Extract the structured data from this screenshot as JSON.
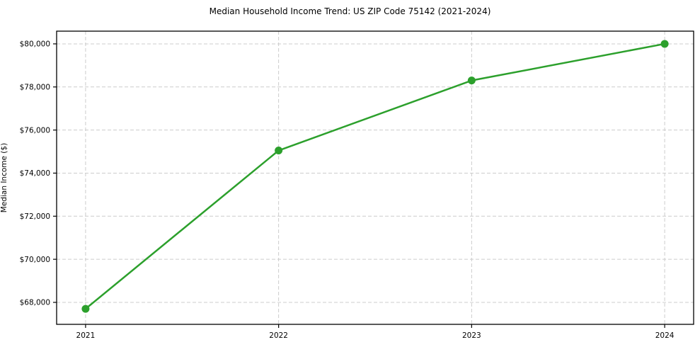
{
  "chart_data": {
    "type": "line",
    "title": "Median Household Income Trend: US ZIP Code 75142 (2021-2024)",
    "xlabel": "",
    "ylabel": "Median Income ($)",
    "x": [
      2021,
      2022,
      2023,
      2024
    ],
    "x_tick_labels": [
      "2021",
      "2022",
      "2023",
      "2024"
    ],
    "values": [
      67700,
      75050,
      78300,
      80000
    ],
    "yticks": [
      {
        "value": 68000,
        "label": "$68,000"
      },
      {
        "value": 70000,
        "label": "$70,000"
      },
      {
        "value": 72000,
        "label": "$72,000"
      },
      {
        "value": 74000,
        "label": "$74,000"
      },
      {
        "value": 76000,
        "label": "$76,000"
      },
      {
        "value": 78000,
        "label": "$78,000"
      },
      {
        "value": 80000,
        "label": "$80,000"
      }
    ],
    "xlim": [
      2020.85,
      2024.15
    ],
    "ylim": [
      66980,
      80590
    ],
    "grid": true,
    "grid_style": "dashed",
    "legend": "none",
    "line_color": "#2ca02c",
    "marker_color": "#2ca02c",
    "grid_color": "#cccccc",
    "axis_color": "#000000",
    "background": "#ffffff"
  }
}
